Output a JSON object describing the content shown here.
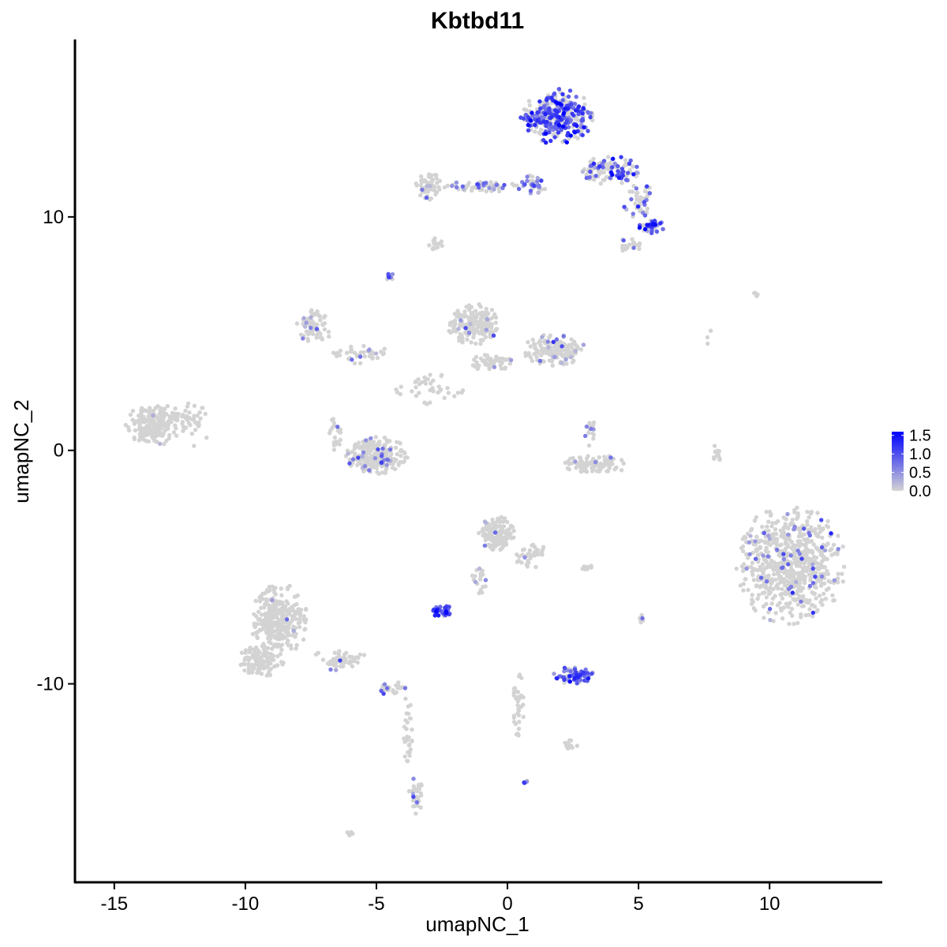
{
  "chart_data": {
    "type": "scatter",
    "title": "Kbtbd11",
    "xlabel": "umapNC_1",
    "ylabel": "umapNC_2",
    "xlim": [
      -16.5,
      14.3
    ],
    "ylim": [
      -18.5,
      17.6
    ],
    "x_ticks": [
      -15,
      -10,
      -5,
      0,
      5,
      10
    ],
    "x_tick_labels": [
      "-15",
      "-10",
      "-5",
      "0",
      "5",
      "10"
    ],
    "y_ticks": [
      -10,
      0,
      10
    ],
    "y_tick_labels": [
      "-10",
      "0",
      "10"
    ],
    "grid": false,
    "legend": {
      "position": "right",
      "labels": [
        "1.5",
        "1.0",
        "0.5",
        "0.0"
      ],
      "values": [
        1.5,
        1.0,
        0.5,
        0.0
      ],
      "low_color": "#d3d3d3",
      "high_color": "#0000ff"
    },
    "clusters": [
      {
        "cx": 1.9,
        "cy": 14.3,
        "rx": 1.4,
        "ry": 1.2,
        "n": 330,
        "expr_frac": 0.6,
        "expr_mean": 0.9
      },
      {
        "cx": 3.9,
        "cy": 12.0,
        "rx": 1.3,
        "ry": 0.6,
        "n": 110,
        "expr_frac": 0.5,
        "expr_mean": 0.8
      },
      {
        "cx": 5.5,
        "cy": 9.6,
        "rx": 0.5,
        "ry": 0.3,
        "n": 40,
        "expr_frac": 0.8,
        "expr_mean": 0.9
      },
      {
        "cx": 5.0,
        "cy": 10.7,
        "rx": 0.6,
        "ry": 0.8,
        "n": 40,
        "expr_frac": 0.4,
        "expr_mean": 0.7
      },
      {
        "cx": 4.7,
        "cy": 8.8,
        "rx": 0.6,
        "ry": 0.3,
        "n": 22,
        "expr_frac": 0.3,
        "expr_mean": 0.6
      },
      {
        "cx": -3.0,
        "cy": 11.3,
        "rx": 0.5,
        "ry": 0.6,
        "n": 60,
        "expr_frac": 0.05,
        "expr_mean": 0.5
      },
      {
        "cx": -1.0,
        "cy": 11.3,
        "rx": 1.6,
        "ry": 0.25,
        "n": 55,
        "expr_frac": 0.3,
        "expr_mean": 0.6
      },
      {
        "cx": 1.0,
        "cy": 11.3,
        "rx": 0.5,
        "ry": 0.5,
        "n": 35,
        "expr_frac": 0.5,
        "expr_mean": 0.7
      },
      {
        "cx": -2.8,
        "cy": 8.7,
        "rx": 0.3,
        "ry": 0.2,
        "n": 8,
        "expr_frac": 0.0,
        "expr_mean": 0.0
      },
      {
        "cx": -4.5,
        "cy": 7.4,
        "rx": 0.2,
        "ry": 0.2,
        "n": 10,
        "expr_frac": 0.7,
        "expr_mean": 0.7
      },
      {
        "cx": -7.4,
        "cy": 5.3,
        "rx": 0.7,
        "ry": 0.8,
        "n": 70,
        "expr_frac": 0.1,
        "expr_mean": 0.5
      },
      {
        "cx": -5.7,
        "cy": 4.1,
        "rx": 1.2,
        "ry": 0.5,
        "n": 40,
        "expr_frac": 0.1,
        "expr_mean": 0.5
      },
      {
        "cx": -1.3,
        "cy": 5.4,
        "rx": 1.0,
        "ry": 0.9,
        "n": 170,
        "expr_frac": 0.05,
        "expr_mean": 0.5
      },
      {
        "cx": 1.8,
        "cy": 4.3,
        "rx": 1.2,
        "ry": 0.7,
        "n": 150,
        "expr_frac": 0.1,
        "expr_mean": 0.5
      },
      {
        "cx": -0.6,
        "cy": 3.8,
        "rx": 0.9,
        "ry": 0.4,
        "n": 50,
        "expr_frac": 0.03,
        "expr_mean": 0.4
      },
      {
        "cx": -3.0,
        "cy": 2.6,
        "rx": 1.6,
        "ry": 0.8,
        "n": 40,
        "expr_frac": 0.0,
        "expr_mean": 0.0
      },
      {
        "cx": -13.4,
        "cy": 1.1,
        "rx": 1.2,
        "ry": 0.9,
        "n": 200,
        "expr_frac": 0.01,
        "expr_mean": 0.4
      },
      {
        "cx": -11.8,
        "cy": 1.2,
        "rx": 0.6,
        "ry": 1.1,
        "n": 30,
        "expr_frac": 0.0,
        "expr_mean": 0.0
      },
      {
        "cx": -5.0,
        "cy": -0.2,
        "rx": 1.2,
        "ry": 0.8,
        "n": 220,
        "expr_frac": 0.1,
        "expr_mean": 0.5
      },
      {
        "cx": -6.6,
        "cy": 0.6,
        "rx": 0.3,
        "ry": 0.8,
        "n": 20,
        "expr_frac": 0.15,
        "expr_mean": 0.5
      },
      {
        "cx": 3.4,
        "cy": -0.6,
        "rx": 1.4,
        "ry": 0.4,
        "n": 90,
        "expr_frac": 0.01,
        "expr_mean": 0.4
      },
      {
        "cx": 3.2,
        "cy": 0.7,
        "rx": 0.3,
        "ry": 0.6,
        "n": 15,
        "expr_frac": 0.1,
        "expr_mean": 0.5
      },
      {
        "cx": 8.0,
        "cy": 0.0,
        "rx": 0.15,
        "ry": 0.7,
        "n": 12,
        "expr_frac": 0.0,
        "expr_mean": 0.0
      },
      {
        "cx": 10.8,
        "cy": -4.9,
        "rx": 2.1,
        "ry": 2.6,
        "n": 650,
        "expr_frac": 0.07,
        "expr_mean": 0.6
      },
      {
        "cx": -0.4,
        "cy": -3.6,
        "rx": 0.7,
        "ry": 0.8,
        "n": 140,
        "expr_frac": 0.06,
        "expr_mean": 0.5
      },
      {
        "cx": 0.9,
        "cy": -4.5,
        "rx": 0.6,
        "ry": 0.6,
        "n": 35,
        "expr_frac": 0.05,
        "expr_mean": 0.4
      },
      {
        "cx": -1.1,
        "cy": -5.6,
        "rx": 0.3,
        "ry": 0.8,
        "n": 18,
        "expr_frac": 0.1,
        "expr_mean": 0.5
      },
      {
        "cx": -2.5,
        "cy": -6.9,
        "rx": 0.4,
        "ry": 0.3,
        "n": 35,
        "expr_frac": 0.9,
        "expr_mean": 0.9
      },
      {
        "cx": 3.0,
        "cy": -5.0,
        "rx": 0.3,
        "ry": 0.15,
        "n": 8,
        "expr_frac": 0.0,
        "expr_mean": 0.0
      },
      {
        "cx": 5.1,
        "cy": -7.3,
        "rx": 0.1,
        "ry": 0.4,
        "n": 8,
        "expr_frac": 0.4,
        "expr_mean": 0.6
      },
      {
        "cx": -8.7,
        "cy": -7.3,
        "rx": 1.1,
        "ry": 1.6,
        "n": 300,
        "expr_frac": 0.01,
        "expr_mean": 0.4
      },
      {
        "cx": -9.4,
        "cy": -9.0,
        "rx": 0.9,
        "ry": 0.7,
        "n": 120,
        "expr_frac": 0.0,
        "expr_mean": 0.0
      },
      {
        "cx": -6.4,
        "cy": -9.0,
        "rx": 1.1,
        "ry": 0.5,
        "n": 50,
        "expr_frac": 0.05,
        "expr_mean": 0.5
      },
      {
        "cx": -4.4,
        "cy": -10.2,
        "rx": 0.6,
        "ry": 0.3,
        "n": 30,
        "expr_frac": 0.15,
        "expr_mean": 0.6
      },
      {
        "cx": -3.8,
        "cy": -12.0,
        "rx": 0.2,
        "ry": 1.6,
        "n": 28,
        "expr_frac": 0.0,
        "expr_mean": 0.0
      },
      {
        "cx": -3.5,
        "cy": -14.8,
        "rx": 0.3,
        "ry": 0.8,
        "n": 30,
        "expr_frac": 0.08,
        "expr_mean": 0.5
      },
      {
        "cx": 2.5,
        "cy": -9.6,
        "rx": 0.8,
        "ry": 0.4,
        "n": 70,
        "expr_frac": 0.7,
        "expr_mean": 0.8
      },
      {
        "cx": 0.4,
        "cy": -11.0,
        "rx": 0.25,
        "ry": 1.5,
        "n": 35,
        "expr_frac": 0.0,
        "expr_mean": 0.0
      },
      {
        "cx": 2.4,
        "cy": -12.6,
        "rx": 0.4,
        "ry": 0.2,
        "n": 15,
        "expr_frac": 0.0,
        "expr_mean": 0.0
      },
      {
        "cx": 0.7,
        "cy": -14.2,
        "rx": 0.1,
        "ry": 0.1,
        "n": 6,
        "expr_frac": 0.9,
        "expr_mean": 0.9
      },
      {
        "cx": -6.0,
        "cy": -16.4,
        "rx": 0.15,
        "ry": 0.1,
        "n": 5,
        "expr_frac": 0.0,
        "expr_mean": 0.0
      },
      {
        "cx": 9.5,
        "cy": 6.7,
        "rx": 0.2,
        "ry": 0.1,
        "n": 5,
        "expr_frac": 0.0,
        "expr_mean": 0.0
      },
      {
        "cx": 7.8,
        "cy": 4.8,
        "rx": 0.2,
        "ry": 0.4,
        "n": 3,
        "expr_frac": 0.0,
        "expr_mean": 0.0
      },
      {
        "cx": -2.7,
        "cy": 8.9,
        "rx": 0.4,
        "ry": 0.2,
        "n": 10,
        "expr_frac": 0.0,
        "expr_mean": 0.0
      },
      {
        "cx": 2.9,
        "cy": -0.8,
        "rx": 0.15,
        "ry": 0.4,
        "n": 10,
        "expr_frac": 0.0,
        "expr_mean": 0.0
      }
    ]
  }
}
